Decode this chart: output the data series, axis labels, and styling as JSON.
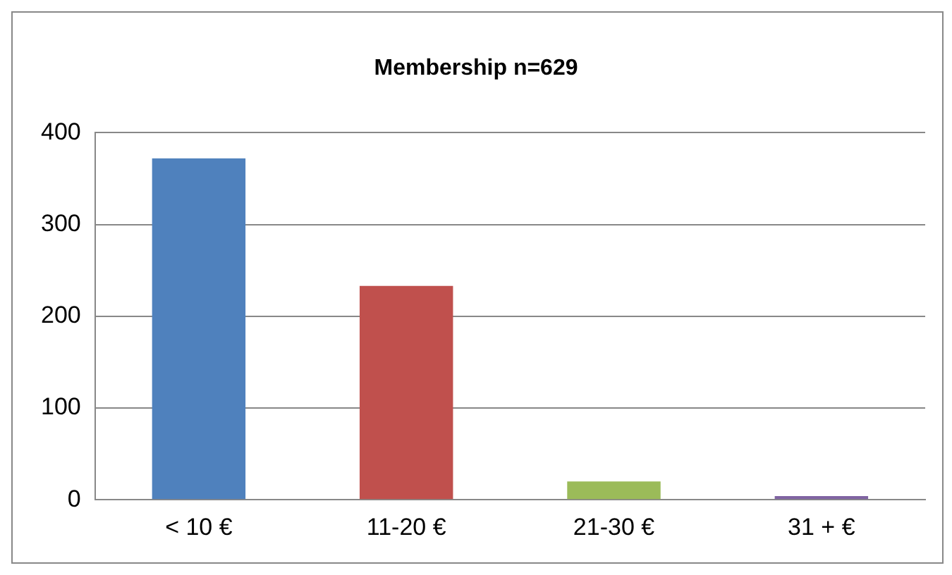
{
  "chart_data": {
    "type": "bar",
    "title": "Membership n=629",
    "categories": [
      "< 10 €",
      "11-20 €",
      "21-30 €",
      "31 + €"
    ],
    "values": [
      372,
      233,
      20,
      4
    ],
    "colors": [
      "#4f81bd",
      "#c0504d",
      "#9bbb59",
      "#8064a2"
    ],
    "ylim": [
      0,
      400
    ],
    "yticks": [
      0,
      100,
      200,
      300,
      400
    ],
    "grid": "y",
    "legend": false
  }
}
